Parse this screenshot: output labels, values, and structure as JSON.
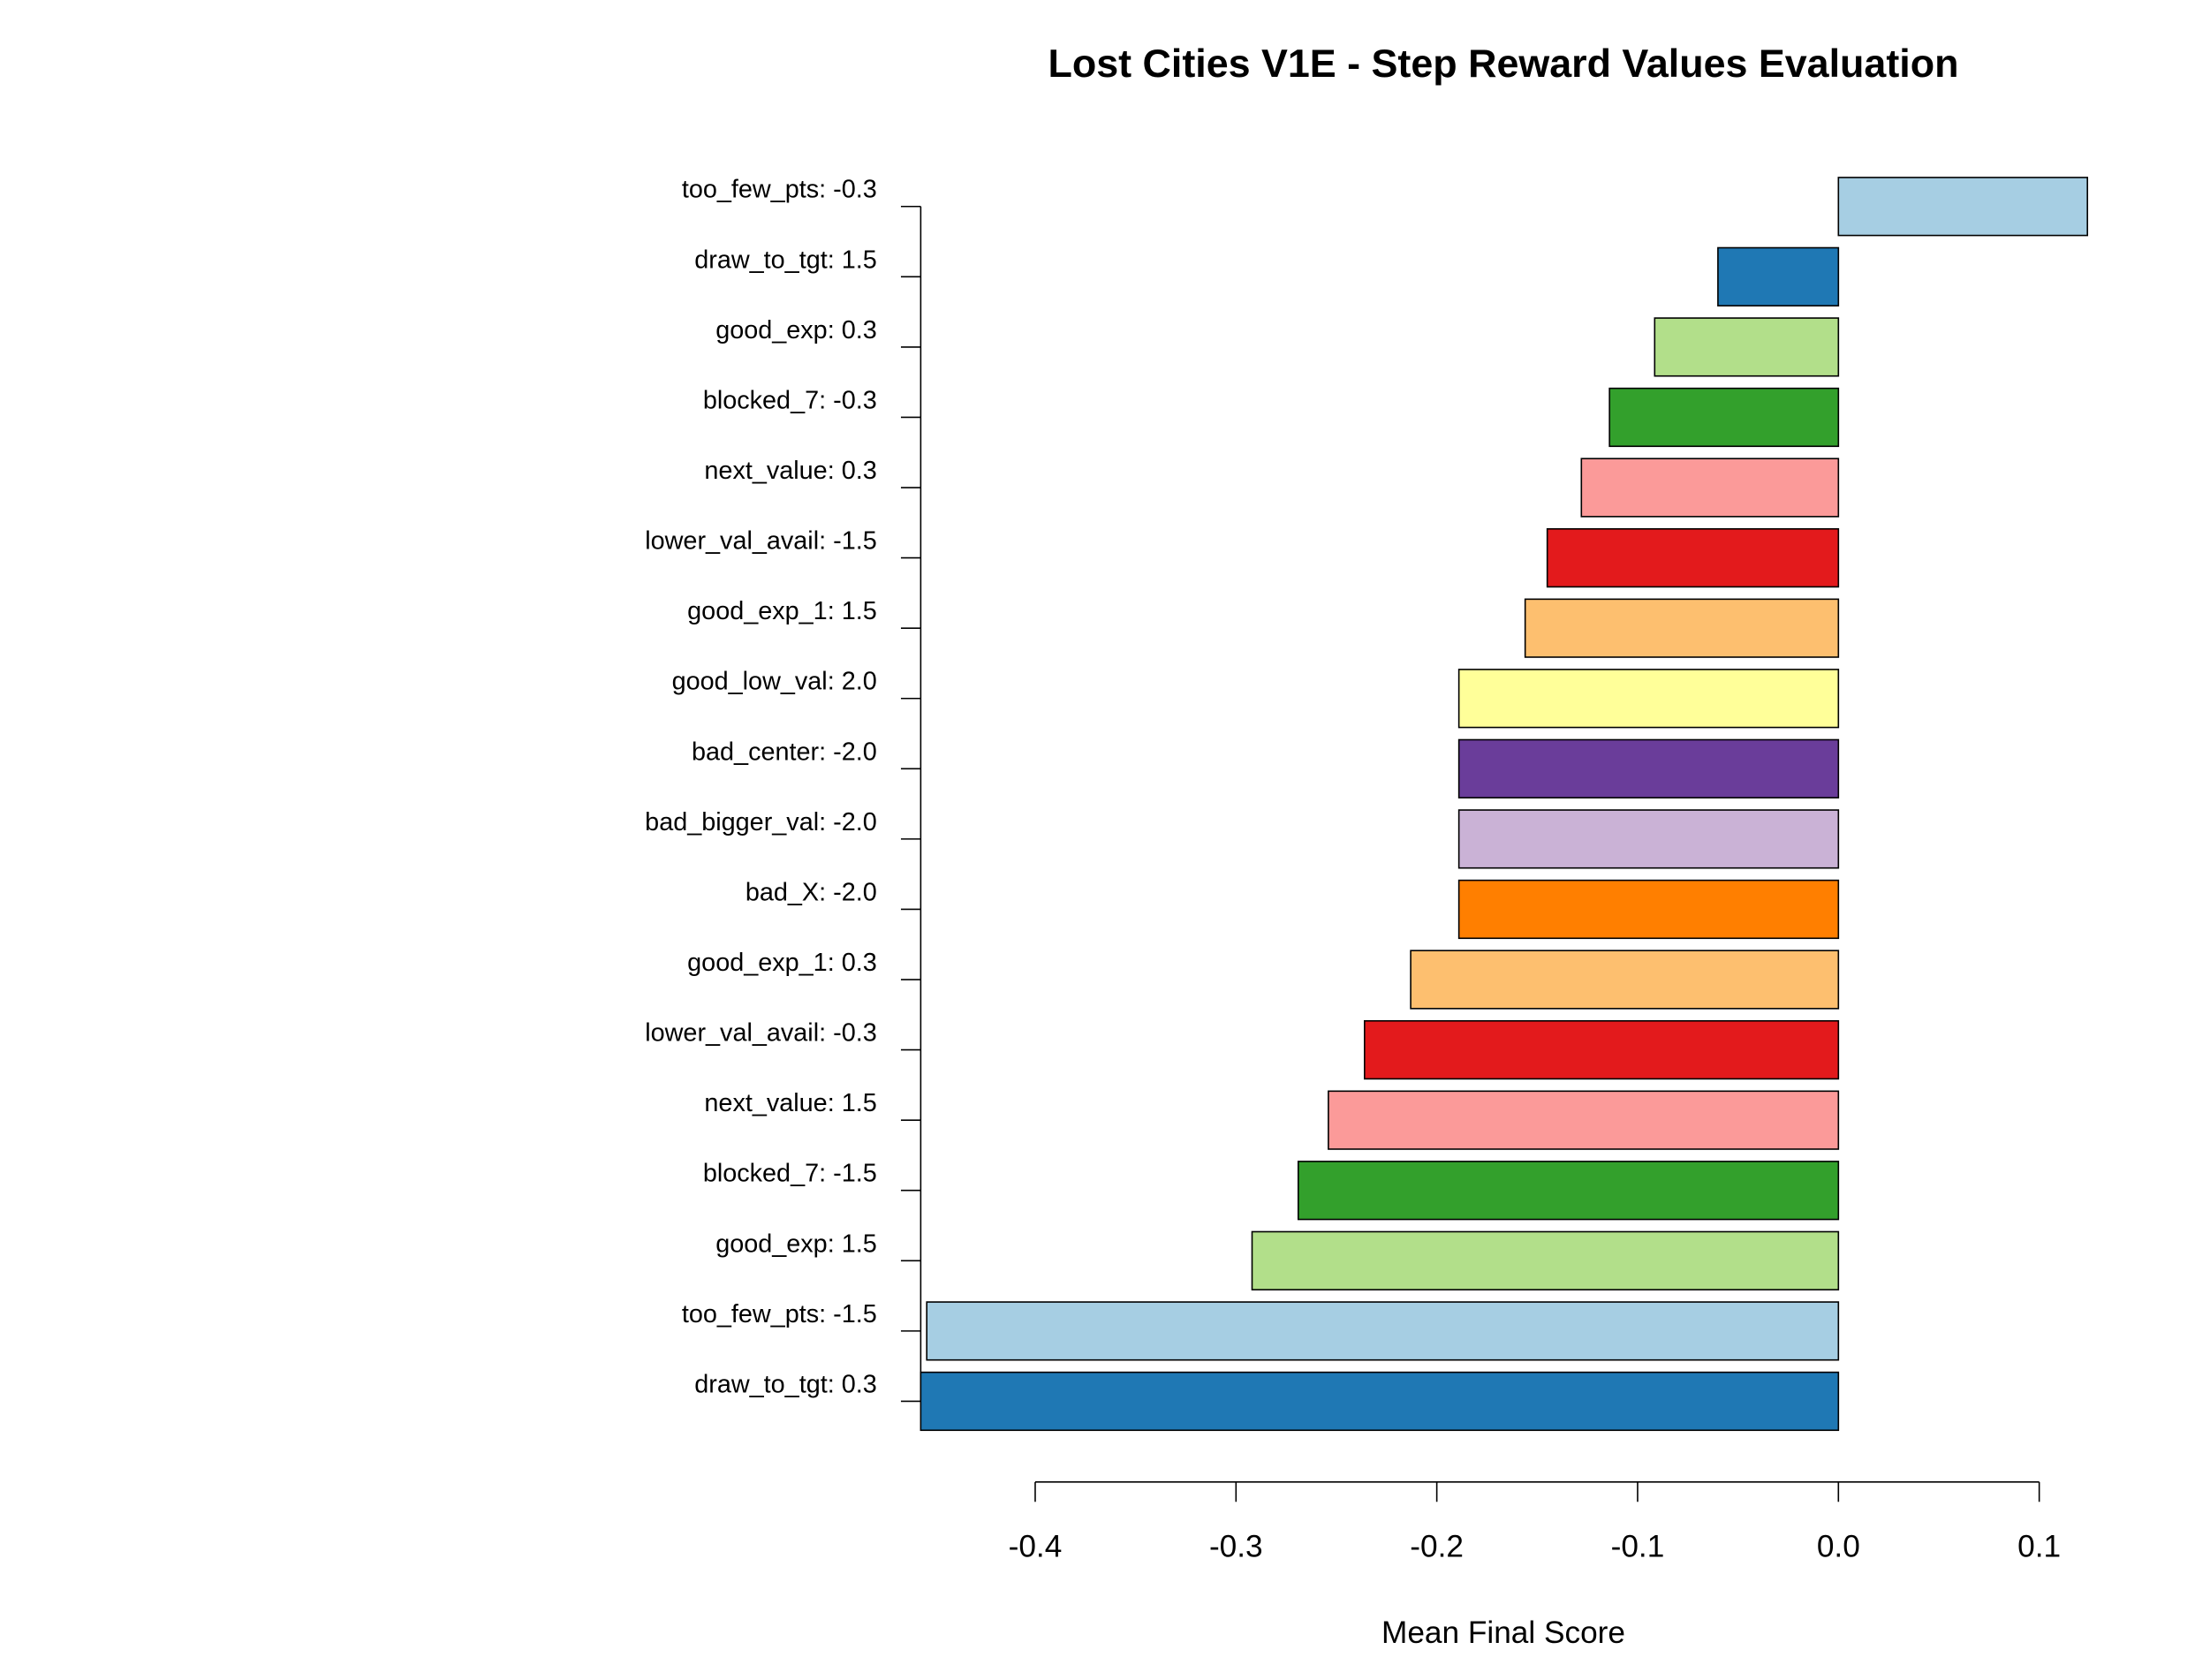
{
  "chart_data": {
    "type": "hbar",
    "title": "Lost Cities V1E - Step Reward Values Evaluation",
    "x_label": "Mean Final Score",
    "categories": [
      "too_few_pts: -0.3",
      "draw_to_tgt: 1.5",
      "good_exp: 0.3",
      "blocked_7: -0.3",
      "next_value: 0.3",
      "lower_val_avail: -1.5",
      "good_exp_1: 1.5",
      "good_low_val: 2.0",
      "bad_center: -2.0",
      "bad_bigger_val: -2.0",
      "bad_X: -2.0",
      "good_exp_1: 0.3",
      "lower_val_avail: -0.3",
      "next_value: 1.5",
      "blocked_7: -1.5",
      "good_exp: 1.5",
      "too_few_pts: -1.5",
      "draw_to_tgt: 0.3"
    ],
    "values": [
      0.124,
      -0.06,
      -0.0915,
      -0.114,
      -0.128,
      -0.145,
      -0.156,
      -0.189,
      -0.189,
      -0.189,
      -0.189,
      -0.213,
      -0.236,
      -0.254,
      -0.269,
      -0.292,
      -0.454,
      -0.457
    ],
    "colors": [
      "#A6CEE3",
      "#1F78B4",
      "#B2DF8A",
      "#33A02C",
      "#FB9A99",
      "#E31A1C",
      "#FDBF6F",
      "#FFFF99",
      "#6A3D9A",
      "#CAB2D6",
      "#FF7F00",
      "#FDBF6F",
      "#E31A1C",
      "#FB9A99",
      "#33A02C",
      "#B2DF8A",
      "#A6CEE3",
      "#1F78B4"
    ],
    "xlim": [
      -0.457,
      0.124
    ],
    "xticks": [
      -0.4,
      -0.3,
      -0.2,
      -0.1,
      {
        "value": 0,
        "label": "0.0"
      },
      0.1
    ]
  }
}
